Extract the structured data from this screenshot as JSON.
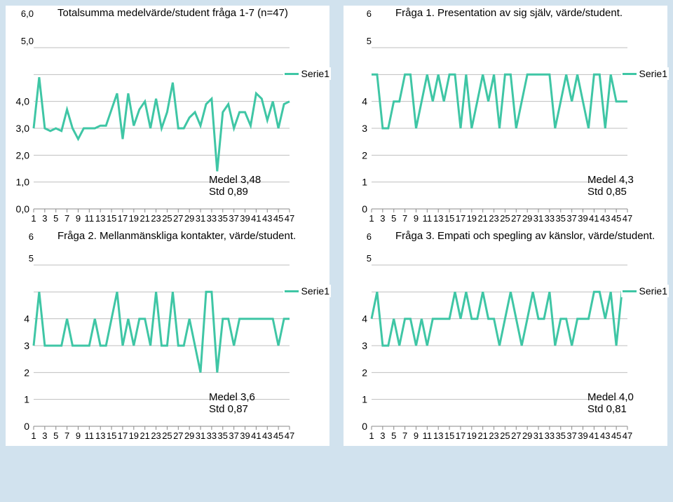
{
  "page": {
    "background_color": "#d1e2ee",
    "panel_background": "#ffffff",
    "grid_color": "#bfbfbf",
    "axis_color": "#888888",
    "series_color": "#3fc6a5",
    "series_line_width": 3,
    "legend_label": "Serie1",
    "x_ticks": [
      1,
      3,
      5,
      7,
      9,
      11,
      13,
      15,
      17,
      19,
      21,
      23,
      25,
      27,
      29,
      31,
      33,
      35,
      37,
      39,
      41,
      43,
      45,
      47
    ],
    "x_min": 1,
    "x_max": 47
  },
  "charts": [
    {
      "id": "c0",
      "title": "Totalsumma medelvärde/student fråga 1-7 (n=47)",
      "y_ticks_labels": [
        "0,0",
        "1,0",
        "2,0",
        "3,0",
        "4,0",
        "5,0",
        "6,0"
      ],
      "y_min": 0,
      "y_max": 6,
      "medel_label": "Medel 3,48",
      "std_label": "Std 0,89",
      "stats_x": 290,
      "stats_y": 182,
      "values": [
        3.0,
        4.9,
        3.0,
        2.9,
        3.0,
        2.9,
        3.7,
        3.0,
        2.6,
        3.0,
        3.0,
        3.0,
        3.1,
        3.1,
        3.7,
        4.3,
        2.6,
        4.3,
        3.1,
        3.7,
        4.0,
        3.0,
        4.1,
        3.0,
        3.6,
        4.7,
        3.0,
        3.0,
        3.4,
        3.6,
        3.1,
        3.9,
        4.1,
        1.4,
        3.6,
        3.9,
        3.0,
        3.6,
        3.6,
        3.1,
        4.3,
        4.1,
        3.3,
        4.0,
        3.0,
        3.9,
        4.0
      ]
    },
    {
      "id": "c1",
      "title": "Fråga 1. Presentation av sig själv, värde/student.",
      "y_ticks_labels": [
        "0",
        "1",
        "2",
        "3",
        "4",
        "5",
        "6"
      ],
      "y_min": 0,
      "y_max": 6,
      "medel_label": "Medel 4,3",
      "std_label": "Std 0,85",
      "stats_x": 348,
      "stats_y": 182,
      "values": [
        5,
        5,
        3,
        3,
        4,
        4,
        5,
        5,
        3,
        4,
        5,
        4,
        5,
        4,
        5,
        5,
        3,
        5,
        3,
        4,
        5,
        4,
        5,
        3,
        5,
        5,
        3,
        4,
        5,
        5,
        5,
        5,
        5,
        3,
        4,
        5,
        4,
        5,
        4,
        3,
        5,
        5,
        3,
        5,
        4,
        4,
        4
      ]
    },
    {
      "id": "c2",
      "title": "Fråga 2. Mellanmänskliga kontakter, värde/student.",
      "y_ticks_labels": [
        "0",
        "1",
        "2",
        "3",
        "4",
        "5",
        "6"
      ],
      "y_min": 0,
      "y_max": 6,
      "medel_label": "Medel 3,6",
      "std_label": "Std 0,87",
      "stats_x": 290,
      "stats_y": 182,
      "values": [
        3,
        5,
        3,
        3,
        3,
        3,
        4,
        3,
        3,
        3,
        3,
        4,
        3,
        3,
        4,
        5,
        3,
        4,
        3,
        4,
        4,
        3,
        5,
        3,
        3,
        5,
        3,
        3,
        4,
        3,
        2,
        5,
        5,
        2,
        4,
        4,
        3,
        4,
        4,
        4,
        4,
        4,
        4,
        4,
        3,
        4,
        4
      ]
    },
    {
      "id": "c3",
      "title": "Fråga 3. Empati och spegling av känslor, värde/student.",
      "y_ticks_labels": [
        "0",
        "1",
        "2",
        "3",
        "4",
        "5",
        "6"
      ],
      "y_min": 0,
      "y_max": 6,
      "medel_label": "Medel 4,0",
      "std_label": "Std 0,81",
      "stats_x": 348,
      "stats_y": 182,
      "values": [
        4,
        5,
        3,
        3,
        4,
        3,
        4,
        4,
        3,
        4,
        3,
        4,
        4,
        4,
        4,
        5,
        4,
        5,
        4,
        4,
        5,
        4,
        4,
        3,
        4,
        5,
        4,
        3,
        4,
        5,
        4,
        4,
        5,
        3,
        4,
        4,
        3,
        4,
        4,
        4,
        5,
        5,
        4,
        5,
        3,
        5,
        5
      ]
    }
  ]
}
